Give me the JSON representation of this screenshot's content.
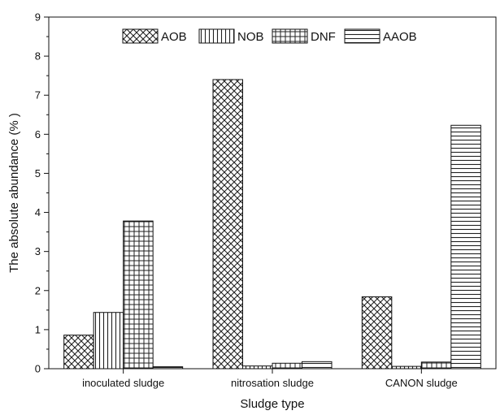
{
  "chart_data": {
    "type": "bar",
    "title": "",
    "xlabel": "Sludge type",
    "ylabel": "The absolute abundance (% )",
    "categories": [
      "inoculated sludge",
      "nitrosation sludge",
      "CANON sludge"
    ],
    "series": [
      {
        "name": "AOB",
        "values": [
          0.86,
          7.4,
          1.84
        ],
        "pattern": "crosshatch-diagonal"
      },
      {
        "name": "NOB",
        "values": [
          1.44,
          0.07,
          0.06
        ],
        "pattern": "vertical-lines"
      },
      {
        "name": "DNF",
        "values": [
          3.78,
          0.14,
          0.17
        ],
        "pattern": "grid"
      },
      {
        "name": "AAOB",
        "values": [
          0.05,
          0.18,
          6.23
        ],
        "pattern": "horizontal-lines"
      }
    ],
    "ylim": [
      0,
      9
    ],
    "yticks": [
      "0",
      "1",
      "2",
      "3",
      "4",
      "5",
      "6",
      "7",
      "8",
      "9"
    ],
    "legend_position": "top-center",
    "grid": false
  }
}
